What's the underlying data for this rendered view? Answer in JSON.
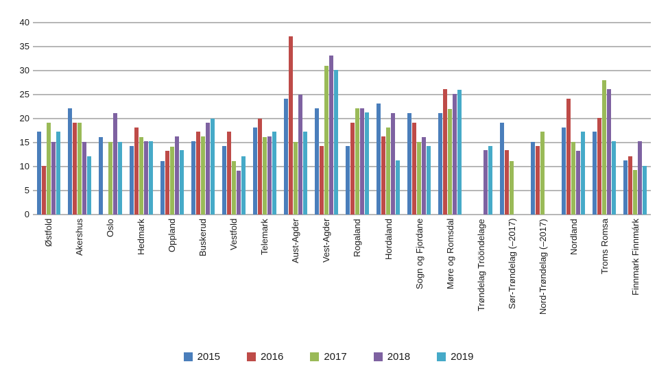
{
  "chart_data": {
    "type": "bar",
    "title": "",
    "xlabel": "",
    "ylabel": "",
    "categories": [
      "Østfold",
      "Akershus",
      "Oslo",
      "Hedmark",
      "Oppland",
      "Buskerud",
      "Vestfold",
      "Telemark",
      "Aust-Agder",
      "Vest-Agder",
      "Rogaland",
      "Hordaland",
      "Sogn og Fjordane",
      "Møre og Romsdal",
      "Trøndelag Trööndelage",
      "Sør-Trøndelag (–2017)",
      "Nord-Trøndelag (–2017)",
      "Nordland",
      "Troms Romsa",
      "Finnmark Finnmárk"
    ],
    "series": [
      {
        "name": "2015",
        "color": "#4A7EBB",
        "values": [
          17.3,
          22.2,
          16.2,
          14.3,
          11.2,
          15.3,
          14.3,
          18.2,
          24.1,
          22.2,
          14.3,
          23.1,
          21.2,
          21.1,
          null,
          19.1,
          15.1,
          18.2,
          17.3,
          11.3
        ]
      },
      {
        "name": "2016",
        "color": "#BE4B48",
        "values": [
          10.1,
          19.2,
          null,
          18.2,
          13.3,
          17.3,
          17.3,
          20.0,
          37.1,
          14.3,
          19.2,
          16.3,
          19.1,
          26.1,
          null,
          13.4,
          14.3,
          24.1,
          20.1,
          12.2
        ]
      },
      {
        "name": "2017",
        "color": "#9ABA58",
        "values": [
          19.2,
          19.2,
          15.2,
          16.2,
          14.1,
          16.3,
          11.1,
          16.2,
          15.2,
          31.0,
          22.2,
          18.2,
          15.2,
          22.0,
          null,
          11.2,
          17.3,
          15.2,
          28.0,
          9.3
        ]
      },
      {
        "name": "2018",
        "color": "#7E62A1",
        "values": [
          15.2,
          15.2,
          21.2,
          15.3,
          16.3,
          19.2,
          9.2,
          16.3,
          25.0,
          33.2,
          22.2,
          21.2,
          16.2,
          25.1,
          13.4,
          null,
          null,
          13.3,
          26.1,
          15.3
        ]
      },
      {
        "name": "2019",
        "color": "#46AAC8",
        "values": [
          17.3,
          12.2,
          15.2,
          15.3,
          13.4,
          20.0,
          12.2,
          17.3,
          17.3,
          30.1,
          21.3,
          11.3,
          14.3,
          26.0,
          14.3,
          null,
          null,
          17.3,
          15.3,
          10.2
        ]
      }
    ],
    "ylim": [
      0,
      40
    ],
    "yticks": [
      0,
      5,
      10,
      15,
      20,
      25,
      30,
      35,
      40
    ],
    "grid": "horizontal",
    "gridline_color": "#b7b7b7",
    "text_color": "#1a1a1a",
    "legend_position": "bottom"
  }
}
